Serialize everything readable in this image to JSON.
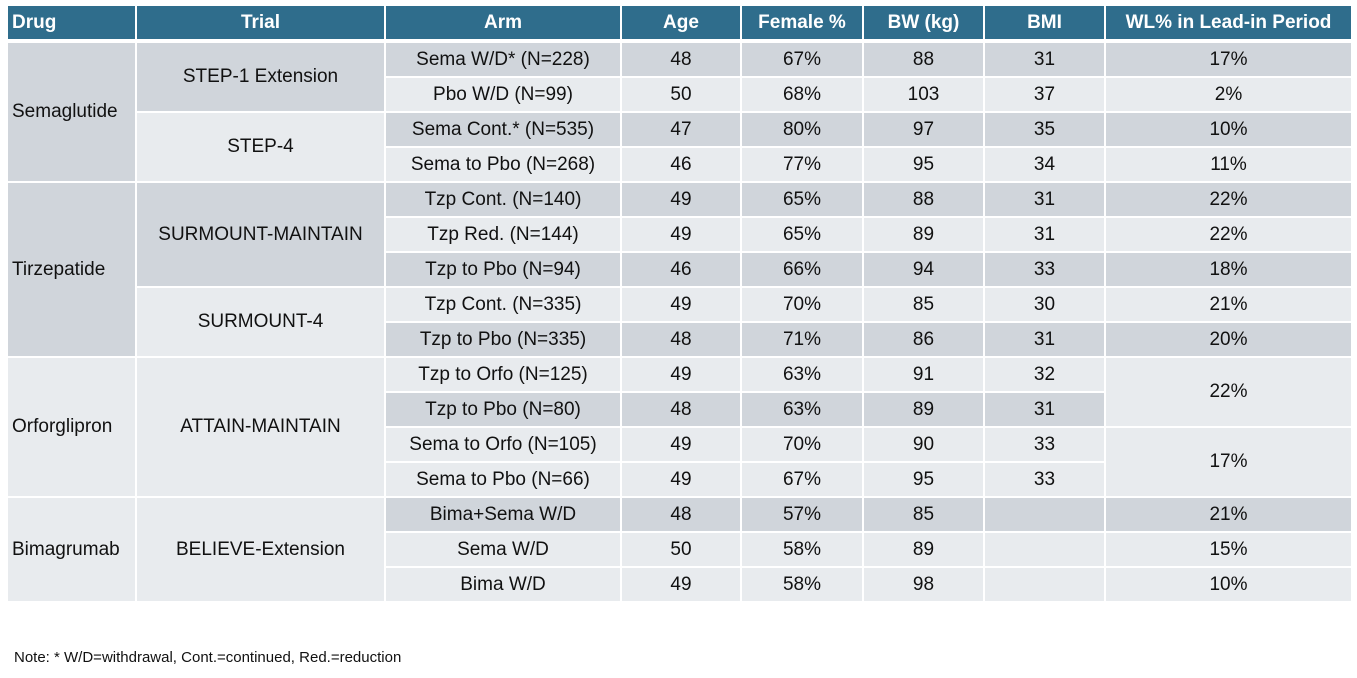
{
  "header": {
    "columns": [
      "Drug",
      "Trial",
      "Arm",
      "Age",
      "Female %",
      "BW (kg)",
      "BMI",
      "WL% in Lead-in Period"
    ]
  },
  "table": {
    "groups": [
      {
        "drug": "Semaglutide",
        "trials": [
          {
            "trial": "STEP-1 Extension",
            "wl_groups": [
              {
                "wl": "17%",
                "arms": [
                  {
                    "arm": "Sema W/D* (N=228)",
                    "age": 48,
                    "female": "67%",
                    "bw": 88,
                    "bmi": 31
                  }
                ]
              },
              {
                "wl": "2%",
                "arms": [
                  {
                    "arm": "Pbo W/D (N=99)",
                    "age": 50,
                    "female": "68%",
                    "bw": 103,
                    "bmi": 37
                  }
                ]
              }
            ]
          },
          {
            "trial": "STEP-4",
            "wl_groups": [
              {
                "wl": "10%",
                "arms": [
                  {
                    "arm": "Sema Cont.* (N=535)",
                    "age": 47,
                    "female": "80%",
                    "bw": 97,
                    "bmi": 35
                  }
                ]
              },
              {
                "wl": "11%",
                "arms": [
                  {
                    "arm": "Sema to Pbo (N=268)",
                    "age": 46,
                    "female": "77%",
                    "bw": 95,
                    "bmi": 34
                  }
                ]
              }
            ]
          }
        ]
      },
      {
        "drug": "Tirzepatide",
        "trials": [
          {
            "trial": "SURMOUNT-MAINTAIN",
            "wl_groups": [
              {
                "wl": "22%",
                "arms": [
                  {
                    "arm": "Tzp Cont. (N=140)",
                    "age": 49,
                    "female": "65%",
                    "bw": 88,
                    "bmi": 31
                  }
                ]
              },
              {
                "wl": "22%",
                "arms": [
                  {
                    "arm": "Tzp Red. (N=144)",
                    "age": 49,
                    "female": "65%",
                    "bw": 89,
                    "bmi": 31
                  }
                ]
              },
              {
                "wl": "18%",
                "arms": [
                  {
                    "arm": "Tzp to Pbo (N=94)",
                    "age": 46,
                    "female": "66%",
                    "bw": 94,
                    "bmi": 33
                  }
                ]
              }
            ]
          },
          {
            "trial": "SURMOUNT-4",
            "wl_groups": [
              {
                "wl": "21%",
                "arms": [
                  {
                    "arm": "Tzp Cont. (N=335)",
                    "age": 49,
                    "female": "70%",
                    "bw": 85,
                    "bmi": 30
                  }
                ]
              },
              {
                "wl": "20%",
                "arms": [
                  {
                    "arm": "Tzp to Pbo (N=335)",
                    "age": 48,
                    "female": "71%",
                    "bw": 86,
                    "bmi": 31
                  }
                ]
              }
            ]
          }
        ]
      },
      {
        "drug": "Orforglipron",
        "trials": [
          {
            "trial": "ATTAIN-MAINTAIN",
            "wl_groups": [
              {
                "wl": "22%",
                "arms": [
                  {
                    "arm": "Tzp to Orfo (N=125)",
                    "age": 49,
                    "female": "63%",
                    "bw": 91,
                    "bmi": 32
                  },
                  {
                    "arm": "Tzp to Pbo (N=80)",
                    "age": 48,
                    "female": "63%",
                    "bw": 89,
                    "bmi": 31
                  }
                ]
              },
              {
                "wl": "17%",
                "arms": [
                  {
                    "arm": "Sema to Orfo (N=105)",
                    "age": 49,
                    "female": "70%",
                    "bw": 90,
                    "bmi": 33
                  },
                  {
                    "arm": "Sema to Pbo (N=66)",
                    "age": 49,
                    "female": "67%",
                    "bw": 95,
                    "bmi": 33
                  }
                ]
              }
            ]
          }
        ]
      },
      {
        "drug": "Bimagrumab",
        "trials": [
          {
            "trial": "BELIEVE-Extension",
            "wl_groups": [
              {
                "wl": "21%",
                "arms": [
                  {
                    "arm": "Bima+Sema W/D",
                    "age": 48,
                    "female": "57%",
                    "bw": 85,
                    "bmi": null
                  }
                ]
              },
              {
                "wl": "15%",
                "arms": [
                  {
                    "arm": "Sema W/D",
                    "age": 50,
                    "female": "58%",
                    "bw": 89,
                    "bmi": null
                  }
                ]
              },
              {
                "wl": "10%",
                "arms": [
                  {
                    "arm": "Bima W/D",
                    "age": 49,
                    "female": "58%",
                    "bw": 98,
                    "bmi": null
                  }
                ]
              }
            ]
          }
        ]
      }
    ]
  },
  "note": "Note:  * W/D=withdrawal, Cont.=continued, Red.=reduction"
}
